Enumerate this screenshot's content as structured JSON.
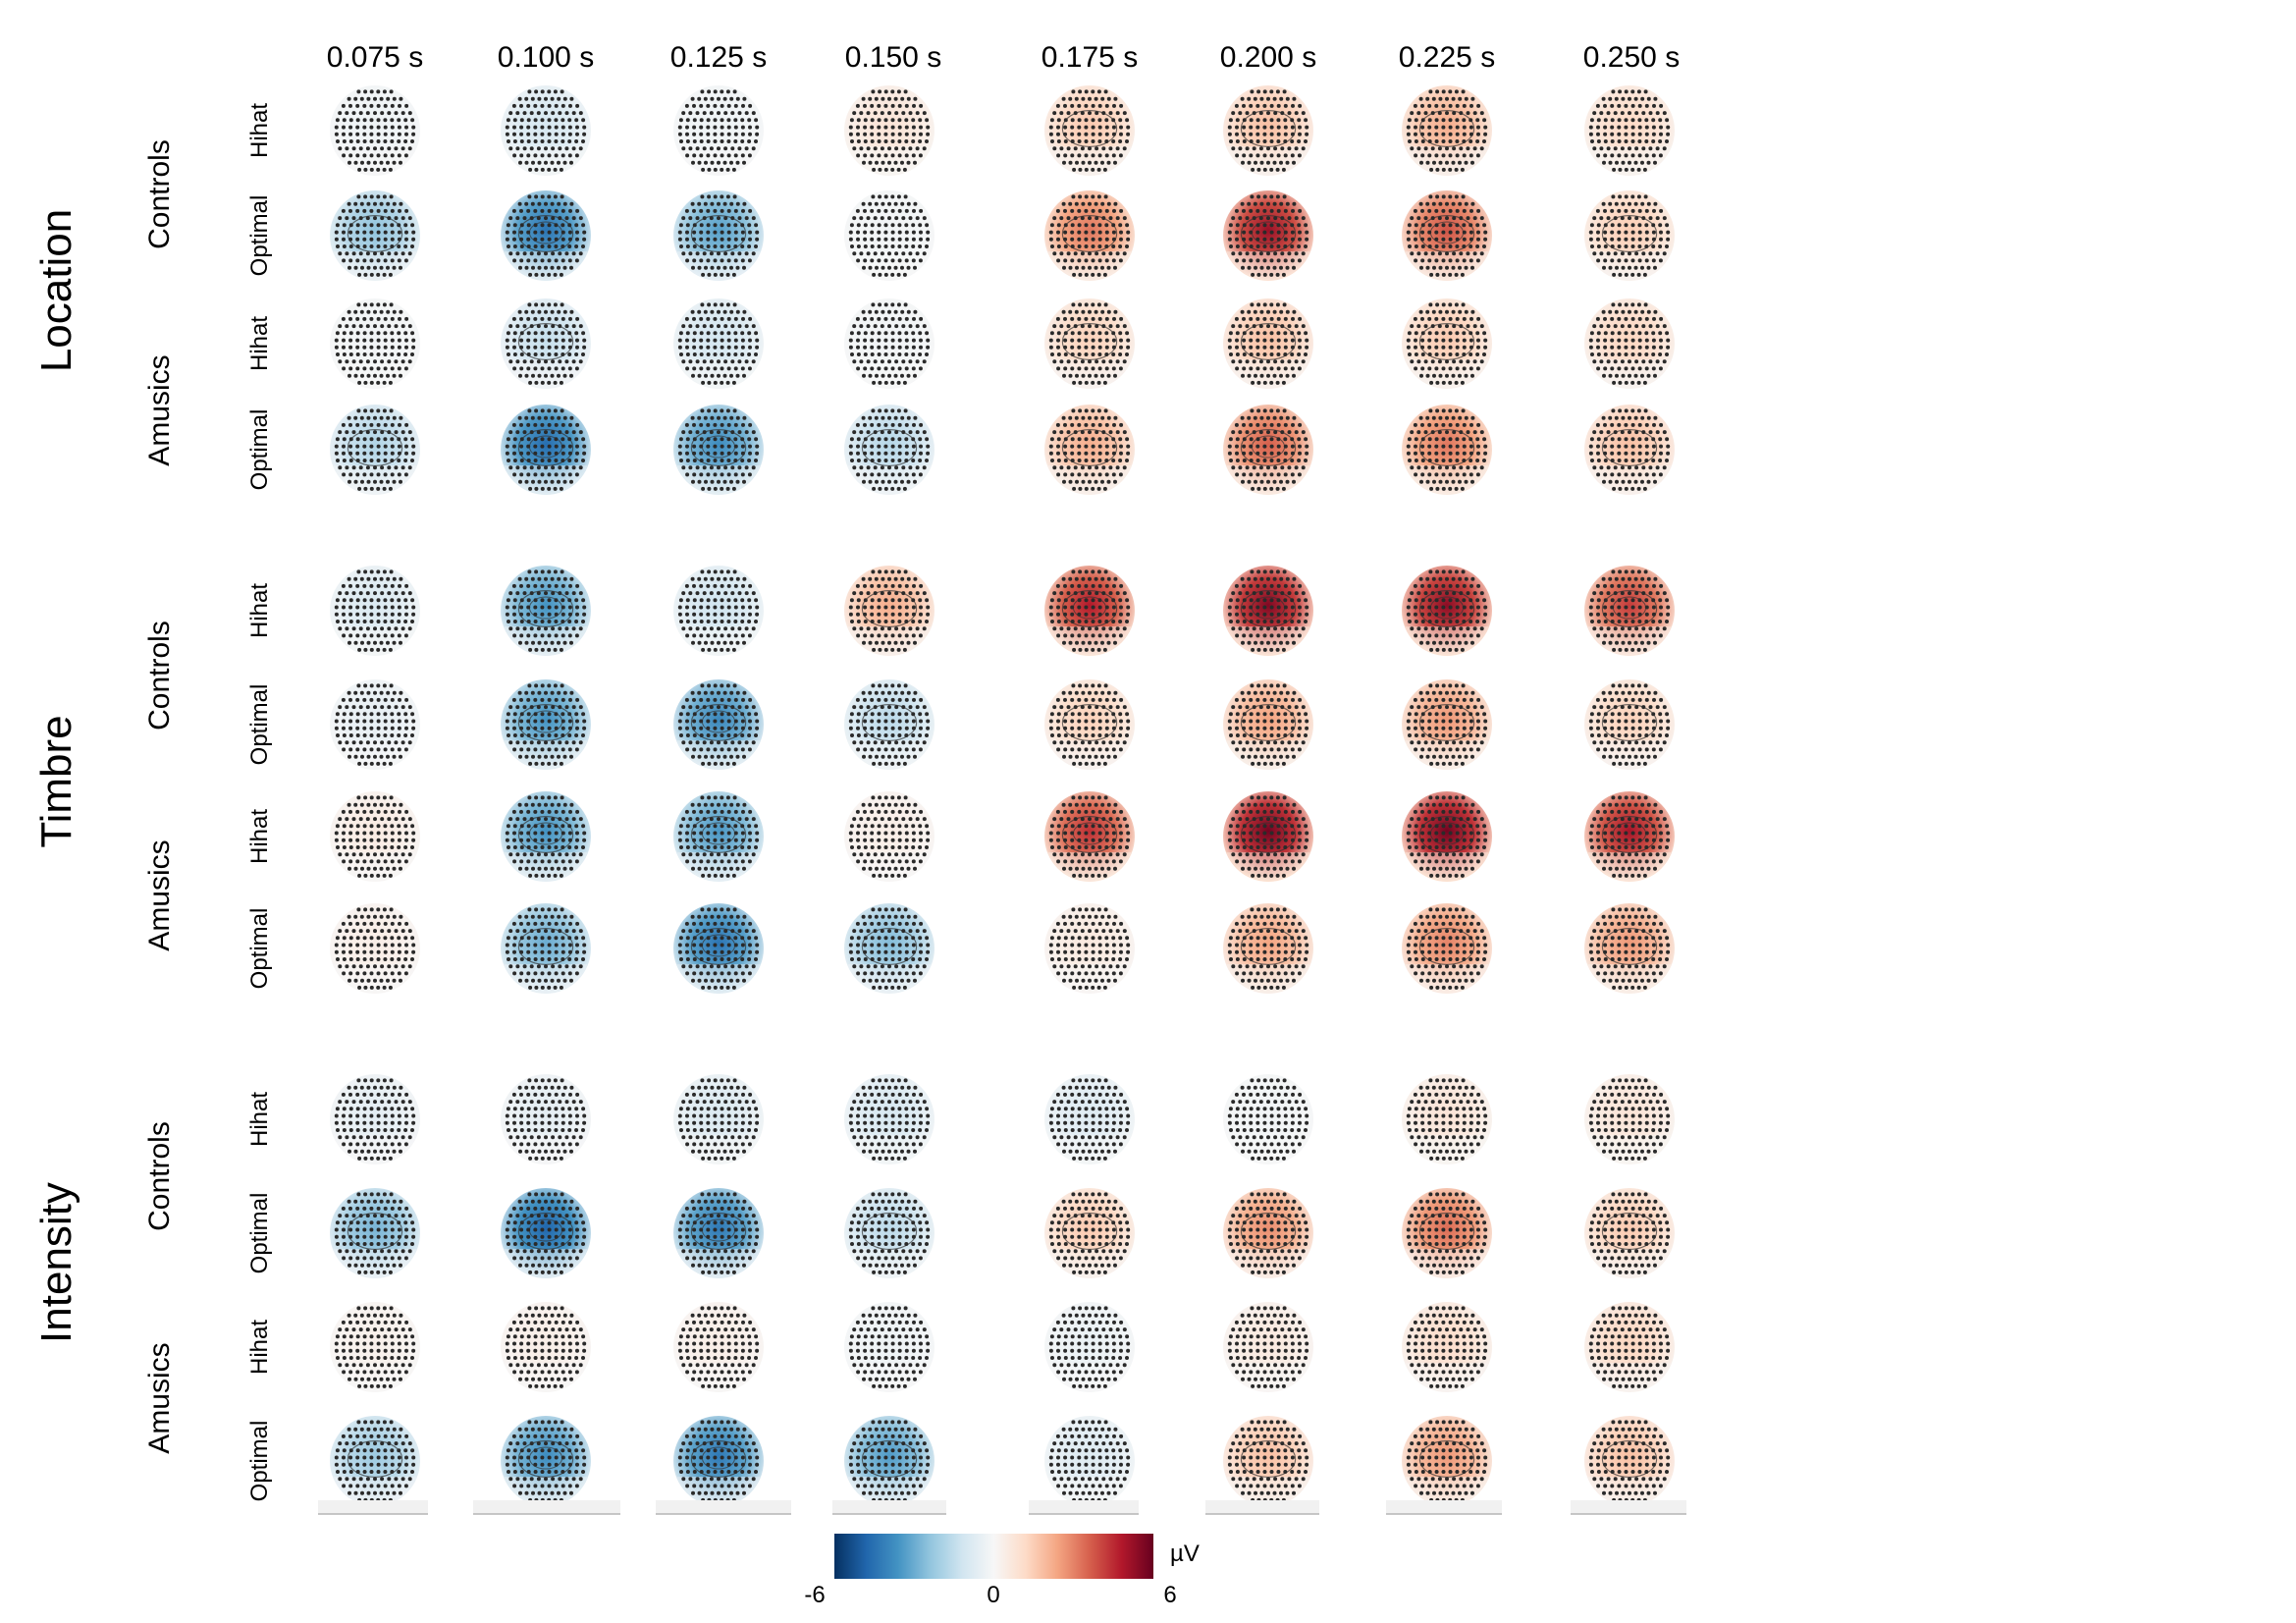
{
  "chart_data": {
    "type": "heatmap",
    "description_type": "topographic-map-grid",
    "time_labels": [
      "0.075 s",
      "0.100 s",
      "0.125 s",
      "0.150 s",
      "0.175 s",
      "0.200 s",
      "0.225 s",
      "0.250 s"
    ],
    "conditions": [
      "Hihat",
      "Optimal"
    ],
    "blocks": [
      {
        "feature": "Location",
        "groups": [
          {
            "group": "Controls",
            "rows": [
              {
                "condition": "Hihat",
                "values": [
                  -0.3,
                  -1.0,
                  -0.3,
                  0.8,
                  1.6,
                  1.8,
                  2.2,
                  1.2
                ]
              },
              {
                "condition": "Optimal",
                "values": [
                  -2.4,
                  -4.4,
                  -3.3,
                  -0.2,
                  3.2,
                  5.2,
                  3.8,
                  1.5
                ]
              }
            ]
          },
          {
            "group": "Amusics",
            "rows": [
              {
                "condition": "Hihat",
                "values": [
                  -0.2,
                  -1.4,
                  -1.1,
                  -0.2,
                  1.4,
                  1.8,
                  1.6,
                  1.3
                ]
              },
              {
                "condition": "Optimal",
                "values": [
                  -1.8,
                  -4.6,
                  -3.8,
                  -1.7,
                  2.2,
                  3.6,
                  3.2,
                  1.8
                ]
              }
            ]
          }
        ]
      },
      {
        "feature": "Timbre",
        "groups": [
          {
            "group": "Controls",
            "rows": [
              {
                "condition": "Hihat",
                "values": [
                  -0.9,
                  -3.6,
                  -1.2,
                  2.2,
                  4.8,
                  5.6,
                  5.4,
                  4.2
                ]
              },
              {
                "condition": "Optimal",
                "values": [
                  -0.5,
                  -3.6,
                  -3.9,
                  -1.6,
                  1.4,
                  2.4,
                  2.6,
                  1.4
                ]
              }
            ]
          },
          {
            "group": "Amusics",
            "rows": [
              {
                "condition": "Hihat",
                "values": [
                  0.5,
                  -3.6,
                  -3.5,
                  0.4,
                  4.4,
                  5.8,
                  5.8,
                  5.0
                ]
              },
              {
                "condition": "Optimal",
                "values": [
                  0.4,
                  -3.0,
                  -4.4,
                  -2.6,
                  0.6,
                  2.4,
                  3.0,
                  2.6
                ]
              }
            ]
          }
        ]
      },
      {
        "feature": "Intensity",
        "groups": [
          {
            "group": "Controls",
            "rows": [
              {
                "condition": "Hihat",
                "values": [
                  -0.6,
                  -0.6,
                  -0.9,
                  -1.0,
                  -0.8,
                  -0.2,
                  0.8,
                  0.8
                ]
              },
              {
                "condition": "Optimal",
                "values": [
                  -2.8,
                  -4.8,
                  -4.3,
                  -1.6,
                  1.6,
                  2.8,
                  3.4,
                  1.6
                ]
              }
            ]
          },
          {
            "group": "Amusics",
            "rows": [
              {
                "condition": "Hihat",
                "values": [
                  0.3,
                  0.4,
                  0.4,
                  -0.3,
                  -0.4,
                  0.6,
                  1.1,
                  1.3
                ]
              },
              {
                "condition": "Optimal",
                "values": [
                  -2.2,
                  -3.8,
                  -4.3,
                  -3.4,
                  -0.8,
                  1.8,
                  2.6,
                  1.8
                ]
              }
            ]
          }
        ]
      }
    ],
    "colorbar": {
      "colormap": "RdBu_r",
      "min": -6,
      "max": 6,
      "ticks": [
        "-6",
        "0",
        "6"
      ],
      "unit": "µV",
      "colors": {
        "negative": "#053061",
        "neutral": "#f7f7f7",
        "positive": "#67001f"
      }
    }
  }
}
